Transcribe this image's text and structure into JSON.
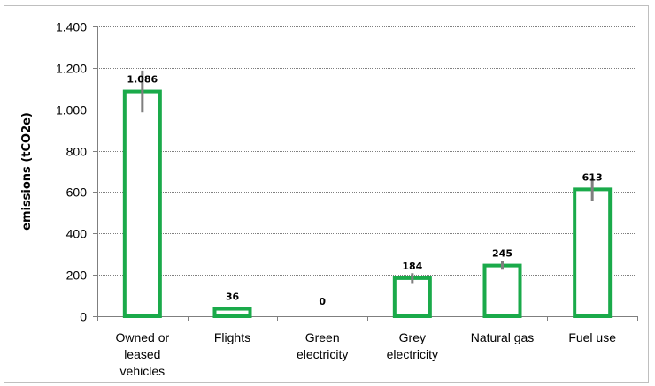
{
  "chart_data": {
    "type": "bar",
    "title": "",
    "xlabel": "",
    "ylabel": "emissions (tCO2e)",
    "ylim": [
      0,
      1400
    ],
    "ytick_labels": [
      "0",
      "200",
      "400",
      "600",
      "800",
      "1.000",
      "1.200",
      "1.400"
    ],
    "yticks": [
      0,
      200,
      400,
      600,
      800,
      1000,
      1200,
      1400
    ],
    "categories": [
      [
        "Owned or",
        "leased",
        "vehicles"
      ],
      [
        "Flights"
      ],
      [
        "Green",
        "electricity"
      ],
      [
        "Grey",
        "electricity"
      ],
      [
        "Natural gas"
      ],
      [
        "Fuel use"
      ]
    ],
    "values": [
      1086,
      36,
      0,
      184,
      245,
      613
    ],
    "value_labels": [
      "1.086",
      "36",
      "0",
      "184",
      "245",
      "613"
    ],
    "error_bars": [
      [
        985,
        1187
      ],
      null,
      null,
      [
        160,
        208
      ],
      [
        225,
        265
      ],
      [
        555,
        671
      ]
    ],
    "grid": true,
    "gridline_style": "dotted",
    "bar_fill": "#ffffff",
    "bar_edge_color": "#1aaa4a",
    "error_bar_color": "#7f7f7f",
    "legend": "none"
  }
}
